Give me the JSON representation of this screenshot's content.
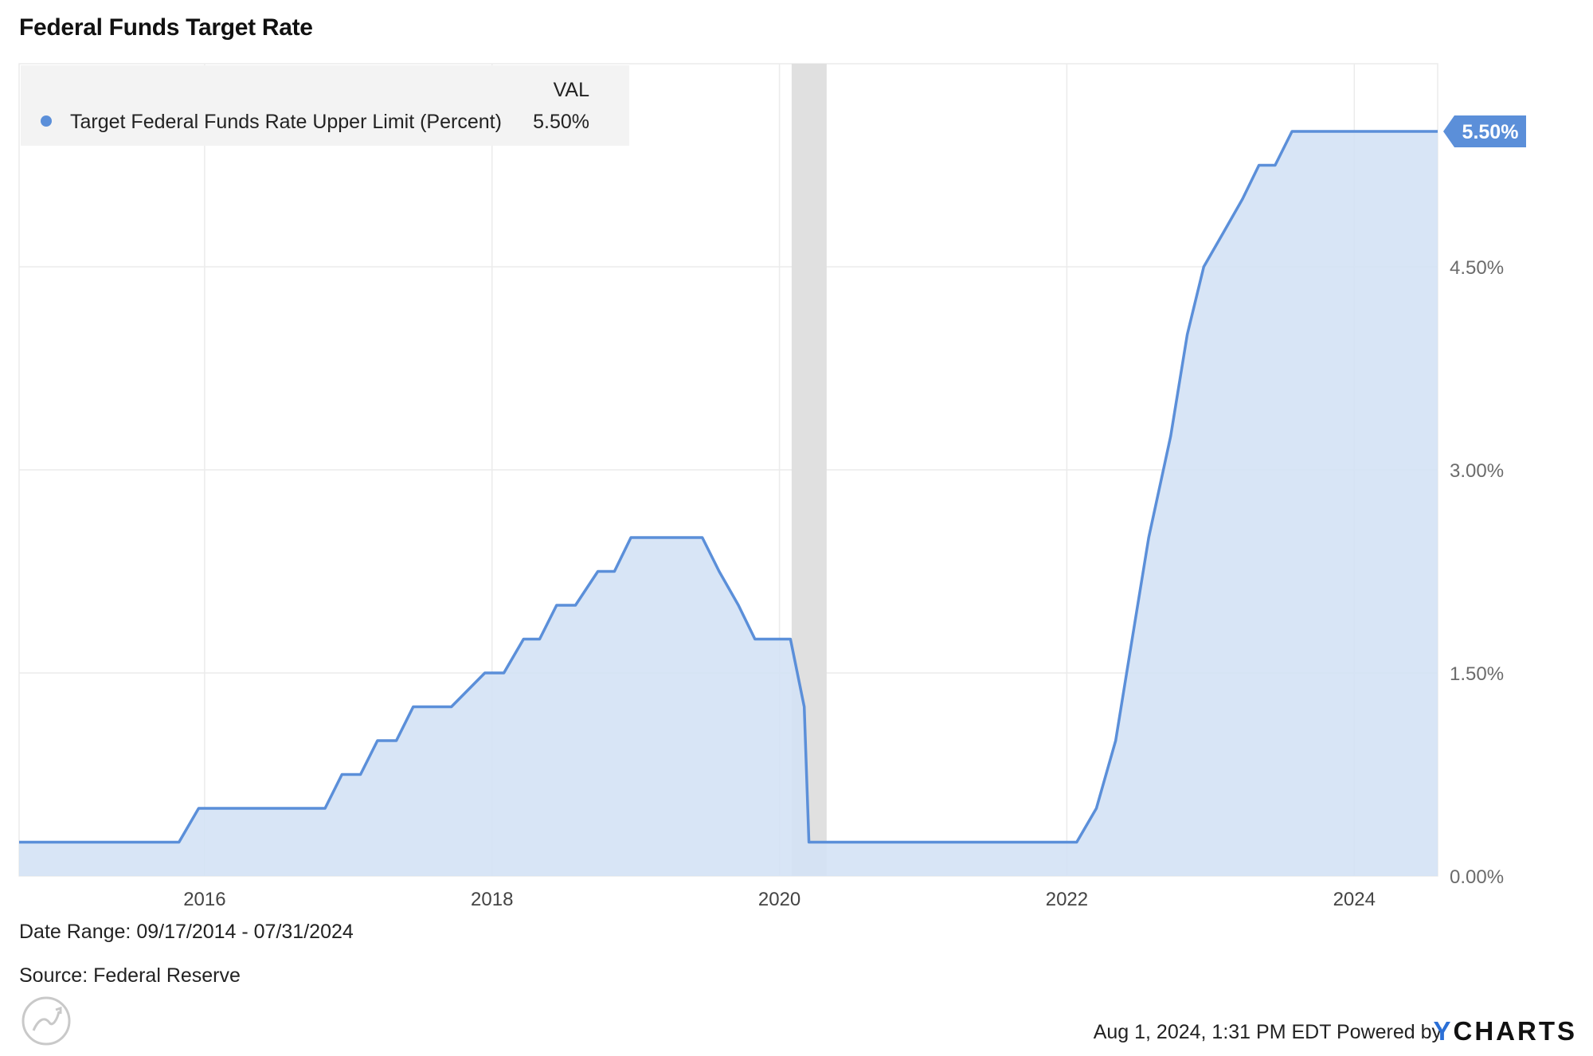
{
  "title": "Federal Funds Target Rate",
  "legend": {
    "header": "VAL",
    "series_label": "Target Federal Funds Rate Upper Limit (Percent)",
    "series_value": "5.50%"
  },
  "last_value_badge": "5.50%",
  "footer": {
    "date_range": "Date Range: 09/17/2014 - 07/31/2024",
    "source": "Source: Federal Reserve",
    "timestamp": "Aug 1, 2024, 1:31 PM EDT",
    "powered_by": "Powered by",
    "brand_y": "Y",
    "brand_rest": "CHARTS"
  },
  "colors": {
    "line": "#5b8fd9",
    "area": "#d4e2f5",
    "recession": "#e0e0e0",
    "grid": "#ebebeb",
    "legend_bg": "#f3f3f3"
  },
  "chart_data": {
    "type": "area",
    "series": [
      {
        "name": "Target Federal Funds Rate Upper Limit (Percent)",
        "x": [
          "2014-09-17",
          "2015-10-28",
          "2015-12-17",
          "2016-11-02",
          "2016-12-15",
          "2017-02-01",
          "2017-03-16",
          "2017-05-03",
          "2017-06-15",
          "2017-09-20",
          "2017-12-14",
          "2018-01-31",
          "2018-03-22",
          "2018-05-02",
          "2018-06-14",
          "2018-08-01",
          "2018-09-27",
          "2018-11-08",
          "2018-12-20",
          "2019-06-19",
          "2019-08-01",
          "2019-09-19",
          "2019-10-31",
          "2020-01-29",
          "2020-03-04",
          "2020-03-16",
          "2022-01-26",
          "2022-03-17",
          "2022-05-05",
          "2022-06-16",
          "2022-07-28",
          "2022-09-22",
          "2022-11-03",
          "2022-12-15",
          "2023-02-02",
          "2023-03-23",
          "2023-05-04",
          "2023-06-14",
          "2023-07-27",
          "2024-07-31"
        ],
        "y": [
          0.25,
          0.25,
          0.5,
          0.5,
          0.75,
          0.75,
          1.0,
          1.0,
          1.25,
          1.25,
          1.5,
          1.5,
          1.75,
          1.75,
          2.0,
          2.0,
          2.25,
          2.25,
          2.5,
          2.5,
          2.25,
          2.0,
          1.75,
          1.75,
          1.25,
          0.25,
          0.25,
          0.5,
          1.0,
          1.75,
          2.5,
          3.25,
          4.0,
          4.5,
          4.75,
          5.0,
          5.25,
          5.25,
          5.5,
          5.5
        ]
      }
    ],
    "x_ticks": [
      "2016",
      "2018",
      "2020",
      "2022",
      "2024"
    ],
    "y_ticks": [
      "0.00%",
      "1.50%",
      "3.00%",
      "4.50%"
    ],
    "ylim": [
      0,
      6
    ],
    "xlim": [
      "2014-09-17",
      "2024-07-31"
    ],
    "recession": {
      "start": "2020-02-01",
      "end": "2020-04-30"
    },
    "grid": true,
    "legend_position": "top-left"
  }
}
